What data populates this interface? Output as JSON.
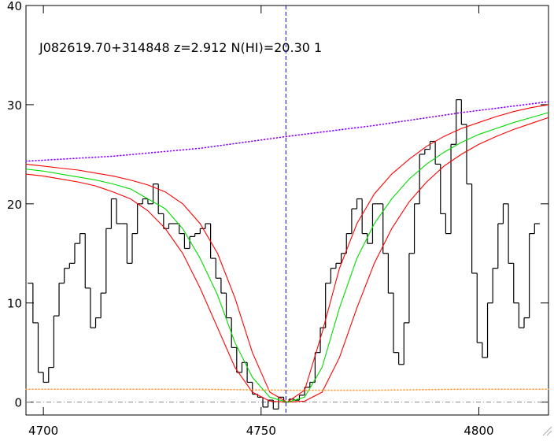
{
  "chart_data": {
    "type": "spectrum",
    "title": "J082619.70+314848 z=2.912 N(HI)=20.30 1",
    "xlim": [
      4696,
      4816
    ],
    "ylim": [
      -1.3,
      40
    ],
    "xticks": [
      4700,
      4750,
      4800
    ],
    "yticks": [
      0,
      10,
      20,
      30,
      40
    ],
    "zero_line": true,
    "marker_x": 4755.7,
    "marker_color": "#0000ff",
    "series": [
      {
        "style": "steps",
        "color": "#000000",
        "x": [
          4697,
          4698.2,
          4699.4,
          4700.6,
          4701.8,
          4703,
          4704.2,
          4705.4,
          4706.6,
          4707.8,
          4709,
          4710.2,
          4711.4,
          4712.6,
          4713.8,
          4715,
          4716.2,
          4717.4,
          4718.6,
          4719.8,
          4721,
          4722.2,
          4723.4,
          4724.6,
          4725.8,
          4727,
          4728.2,
          4729.4,
          4730.6,
          4731.8,
          4733,
          4734.2,
          4735.4,
          4736.6,
          4737.8,
          4739,
          4740.2,
          4741.4,
          4742.6,
          4743.8,
          4745,
          4746.2,
          4747.4,
          4748.6,
          4749.8,
          4751,
          4752.2,
          4753.4,
          4754.6,
          4755.8,
          4757,
          4758.2,
          4759.4,
          4760.6,
          4761.8,
          4763,
          4764.2,
          4765.4,
          4766.6,
          4767.8,
          4769,
          4770.2,
          4771.4,
          4772.6,
          4773.8,
          4775,
          4776.2,
          4777.4,
          4778.6,
          4779.8,
          4781,
          4782.2,
          4783.4,
          4784.6,
          4785.8,
          4787,
          4788.2,
          4789.4,
          4790.6,
          4791.8,
          4793,
          4794.2,
          4795.4,
          4796.6,
          4797.8,
          4799,
          4800.2,
          4801.4,
          4802.6,
          4803.8,
          4805,
          4806.2,
          4807.4,
          4808.6,
          4809.8,
          4811,
          4812.2,
          4813.4
        ],
        "values": [
          12,
          8,
          3,
          2,
          3.5,
          8.7,
          12,
          13.5,
          14,
          16,
          17,
          11.5,
          7.5,
          8.5,
          11,
          17.5,
          20.5,
          18,
          18,
          14,
          17,
          20,
          20.5,
          20,
          22,
          19,
          17.5,
          18,
          18,
          17,
          15.5,
          16.7,
          17,
          17.5,
          18,
          14.5,
          12.5,
          11,
          8.5,
          5.5,
          3,
          4,
          2,
          0.8,
          0.5,
          -0.5,
          0.2,
          -0.7,
          0.5,
          0,
          0.3,
          0.2,
          0.7,
          1.5,
          2,
          5,
          7.5,
          12,
          13.5,
          14,
          15,
          17,
          19.5,
          20.5,
          17,
          16,
          20,
          20,
          15,
          11,
          5,
          3.8,
          8,
          15,
          20,
          25,
          25.5,
          26.3,
          24,
          19,
          17,
          26,
          30.5,
          28,
          22,
          13,
          6,
          4.5,
          10,
          13.5,
          18,
          20,
          14,
          10,
          7.5,
          8.5,
          17,
          18
        ]
      },
      {
        "style": "line",
        "color": "#ff0000",
        "x": [
          4696,
          4700,
          4704,
          4708,
          4712,
          4716,
          4720,
          4724,
          4728,
          4732,
          4736,
          4740,
          4744,
          4748,
          4752,
          4756,
          4760,
          4764,
          4768,
          4772,
          4776,
          4780,
          4784,
          4788,
          4792,
          4796,
          4800,
          4804,
          4808,
          4812,
          4816
        ],
        "values": [
          23,
          22.8,
          22.5,
          22.2,
          21.8,
          21.2,
          20.5,
          19.3,
          17.5,
          15,
          11.5,
          7.5,
          3.5,
          1,
          0.1,
          0,
          0.1,
          1,
          4.5,
          9.5,
          14,
          17.5,
          20.2,
          22.2,
          23.8,
          25,
          26,
          26.8,
          27.5,
          28.1,
          28.7
        ]
      },
      {
        "style": "line",
        "color": "#ff0000",
        "x": [
          4696,
          4700,
          4704,
          4708,
          4712,
          4716,
          4720,
          4724,
          4728,
          4732,
          4736,
          4740,
          4744,
          4748,
          4752,
          4756,
          4760,
          4764,
          4768,
          4772,
          4776,
          4780,
          4784,
          4788,
          4792,
          4796,
          4800,
          4804,
          4808,
          4812,
          4816
        ],
        "values": [
          24,
          23.8,
          23.6,
          23.4,
          23.1,
          22.8,
          22.4,
          21.9,
          21.2,
          20,
          18,
          15,
          10.5,
          5,
          1,
          0,
          1.2,
          7,
          13.5,
          18,
          21,
          23,
          24.5,
          25.8,
          26.8,
          27.6,
          28.2,
          28.8,
          29.3,
          29.7,
          30
        ]
      },
      {
        "style": "line",
        "color": "#00dd00",
        "x": [
          4696,
          4700,
          4704,
          4708,
          4712,
          4716,
          4720,
          4724,
          4728,
          4732,
          4736,
          4740,
          4744,
          4748,
          4752,
          4756,
          4760,
          4764,
          4768,
          4772,
          4776,
          4780,
          4784,
          4788,
          4792,
          4796,
          4800,
          4804,
          4808,
          4812,
          4816
        ],
        "values": [
          23.5,
          23.3,
          23,
          22.7,
          22.4,
          22,
          21.5,
          20.5,
          19.5,
          17.5,
          14.5,
          10.8,
          6,
          2.5,
          0.5,
          0,
          0.5,
          3.5,
          9.5,
          14.5,
          18,
          20.5,
          22.5,
          24,
          25.2,
          26.2,
          27,
          27.6,
          28.2,
          28.7,
          29.2
        ]
      },
      {
        "style": "dotted",
        "color": "#8800ff",
        "x": [
          4696,
          4716,
          4736,
          4756,
          4776,
          4796,
          4816
        ],
        "values": [
          24.3,
          24.8,
          25.6,
          26.8,
          27.9,
          29.2,
          30.3
        ]
      },
      {
        "style": "dotted",
        "color": "#ff9933",
        "x": [
          4696,
          4736,
          4756,
          4776,
          4796,
          4816
        ],
        "values": [
          1.3,
          1.3,
          1.2,
          1.2,
          1.3,
          1.3
        ]
      }
    ]
  }
}
